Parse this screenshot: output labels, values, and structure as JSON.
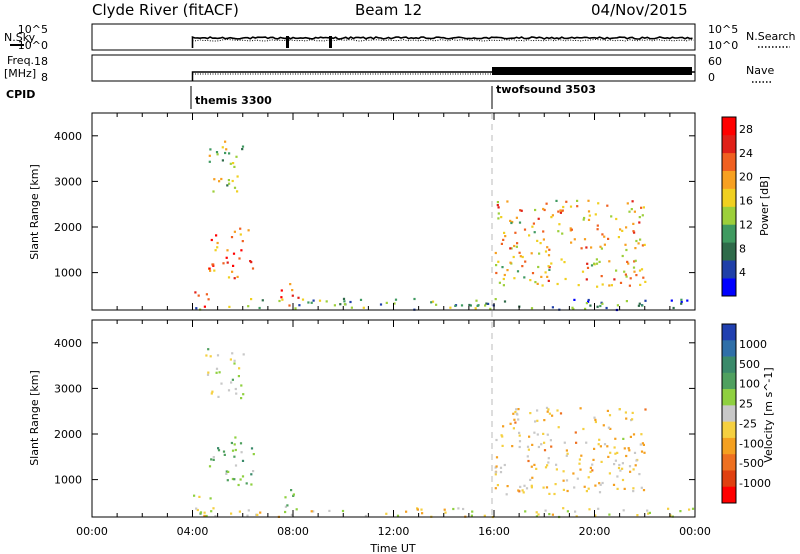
{
  "header": {
    "station": "Clyde River (fitACF)",
    "beam": "Beam 12",
    "date": "04/Nov/2015"
  },
  "panels": {
    "nsky": {
      "label": "N.Sky",
      "right_label": "N.Search",
      "left_ticks": [
        "10^5",
        "10^0"
      ],
      "right_ticks": [
        "10^5",
        "10^0"
      ]
    },
    "freq": {
      "label_top": "Freq.",
      "label_bottom": "[MHz]",
      "right_label": "Nave",
      "left_ticks": [
        "18",
        "8"
      ],
      "right_ticks": [
        "60",
        "0"
      ]
    },
    "cpid": {
      "label": "CPID",
      "programs": [
        "themis 3300",
        "twofsound 3503"
      ]
    }
  },
  "colors": {
    "power_scale": [
      "#0000ff",
      "#1f3fa8",
      "#2f6b4a",
      "#3f9a60",
      "#9ccf3a",
      "#f0d020",
      "#f7a020",
      "#f06020",
      "#e02018",
      "#ff0000"
    ],
    "velocity_scale": [
      "#2040b0",
      "#2f6fa8",
      "#3a8a6a",
      "#4fa05f",
      "#8fd040",
      "#c8c8c8",
      "#f5d040",
      "#f4a020",
      "#ee7020",
      "#e04010",
      "#ff0000"
    ]
  },
  "chart_data": [
    {
      "type": "heatmap",
      "title": "",
      "xlabel": "",
      "ylabel": "Slant Range [km]",
      "x_ticks": [
        "00:00",
        "04:00",
        "08:00",
        "12:00",
        "16:00",
        "20:00",
        "00:00"
      ],
      "xlim": [
        0,
        24
      ],
      "ylim": [
        180,
        4500
      ],
      "y_ticks": [
        1000,
        2000,
        3000,
        4000
      ],
      "colorbar": {
        "label": "Power [dB]",
        "ticks": [
          4,
          8,
          12,
          16,
          20,
          24,
          28
        ],
        "range": [
          0,
          30
        ]
      },
      "scatter_regions": [
        {
          "t": [
            4.0,
            4.7
          ],
          "r": [
            200,
            600
          ],
          "value": 26
        },
        {
          "t": [
            4.6,
            6.4
          ],
          "r": [
            900,
            2000
          ],
          "value": 24
        },
        {
          "t": [
            4.5,
            6.0
          ],
          "r": [
            2800,
            3900
          ],
          "value": 14
        },
        {
          "t": [
            7.4,
            8.4
          ],
          "r": [
            300,
            800
          ],
          "value": 22
        },
        {
          "t": [
            4.0,
            16.0
          ],
          "r": [
            200,
            450
          ],
          "value": 10
        },
        {
          "t": [
            16.0,
            22.0
          ],
          "r": [
            700,
            2600
          ],
          "value": 18
        },
        {
          "t": [
            16.0,
            24.0
          ],
          "r": [
            200,
            450
          ],
          "value": 8
        }
      ]
    },
    {
      "type": "heatmap",
      "title": "",
      "xlabel": "Time UT",
      "ylabel": "Slant Range [km]",
      "x_ticks": [
        "00:00",
        "04:00",
        "08:00",
        "12:00",
        "16:00",
        "20:00",
        "00:00"
      ],
      "xlim": [
        0,
        24
      ],
      "ylim": [
        180,
        4500
      ],
      "y_ticks": [
        1000,
        2000,
        3000,
        4000
      ],
      "colorbar": {
        "label": "Velocity [m s^-1]",
        "ticks": [
          "1000",
          "500",
          "100",
          "25",
          "-25",
          "-100",
          "-500",
          "-1000"
        ],
        "range": [
          -1000,
          1000
        ]
      },
      "scatter_regions": [
        {
          "t": [
            4.0,
            4.7
          ],
          "r": [
            200,
            700
          ],
          "value": 100
        },
        {
          "t": [
            4.6,
            6.4
          ],
          "r": [
            900,
            2000
          ],
          "value": 300
        },
        {
          "t": [
            4.5,
            6.0
          ],
          "r": [
            2800,
            3900
          ],
          "value": 50
        },
        {
          "t": [
            7.4,
            8.4
          ],
          "r": [
            300,
            800
          ],
          "value": 200
        },
        {
          "t": [
            4.0,
            16.0
          ],
          "r": [
            200,
            400
          ],
          "value": -100
        },
        {
          "t": [
            16.0,
            22.0
          ],
          "r": [
            700,
            2600
          ],
          "value": -200
        },
        {
          "t": [
            16.0,
            24.0
          ],
          "r": [
            200,
            400
          ],
          "value": -50
        }
      ]
    }
  ]
}
